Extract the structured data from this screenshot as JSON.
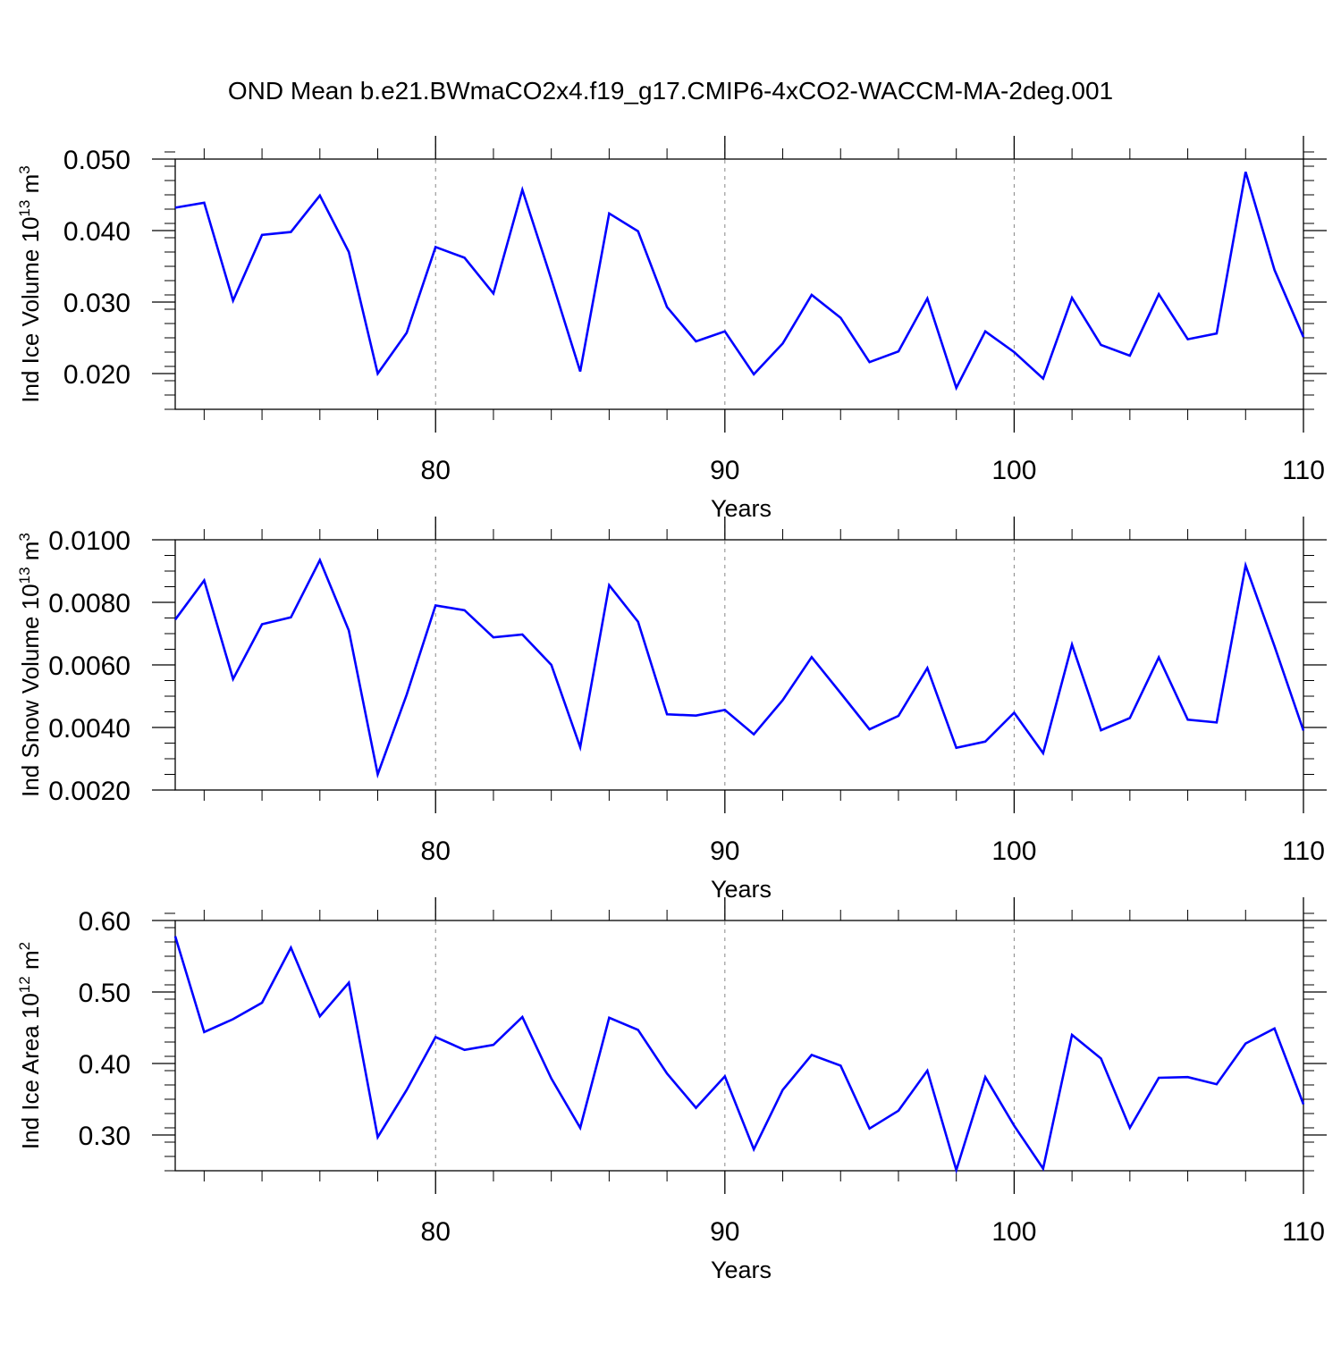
{
  "title": "OND Mean b.e21.BWmaCO2x4.f19_g17.CMIP6-4xCO2-WACCM-MA-2deg.001",
  "line_color": "#0000ff",
  "chart_data": [
    {
      "type": "line",
      "xlabel": "Years",
      "ylabel_main": "Ind Ice Volume 10",
      "ylabel_sup1": "13",
      "ylabel_unit": " m",
      "ylabel_sup2": "3",
      "xlim": [
        71,
        110
      ],
      "ylim": [
        0.015,
        0.05
      ],
      "x_ticks": [
        80,
        90,
        100,
        110
      ],
      "x_tick_labels": [
        "80",
        "90",
        "100",
        "110"
      ],
      "y_ticks": [
        0.02,
        0.03,
        0.04,
        0.05
      ],
      "y_tick_labels": [
        "0.020",
        "0.030",
        "0.040",
        "0.050"
      ],
      "y_minor_step": 0.002,
      "grid_x": [
        80,
        90,
        100
      ],
      "x": [
        71,
        72,
        73,
        74,
        75,
        76,
        77,
        78,
        79,
        80,
        81,
        82,
        83,
        84,
        85,
        86,
        87,
        88,
        89,
        90,
        91,
        92,
        93,
        94,
        95,
        96,
        97,
        98,
        99,
        100,
        101,
        102,
        103,
        104,
        105,
        106,
        107,
        108,
        109,
        110
      ],
      "values": [
        0.0432,
        0.0439,
        0.0302,
        0.0394,
        0.0398,
        0.0449,
        0.037,
        0.02,
        0.0257,
        0.0377,
        0.0362,
        0.0312,
        0.0457,
        0.0332,
        0.0203,
        0.0424,
        0.0399,
        0.0293,
        0.0245,
        0.0259,
        0.0199,
        0.0242,
        0.031,
        0.0278,
        0.0216,
        0.0231,
        0.0305,
        0.018,
        0.0259,
        0.023,
        0.0193,
        0.0306,
        0.024,
        0.0225,
        0.0311,
        0.0248,
        0.0256,
        0.0482,
        0.0345,
        0.0251
      ]
    },
    {
      "type": "line",
      "xlabel": "Years",
      "ylabel_main": "Ind Snow Volume 10",
      "ylabel_sup1": "13",
      "ylabel_unit": " m",
      "ylabel_sup2": "3",
      "xlim": [
        71,
        110
      ],
      "ylim": [
        0.002,
        0.01
      ],
      "x_ticks": [
        80,
        90,
        100,
        110
      ],
      "x_tick_labels": [
        "80",
        "90",
        "100",
        "110"
      ],
      "y_ticks": [
        0.002,
        0.004,
        0.006,
        0.008,
        0.01
      ],
      "y_tick_labels": [
        "0.0020",
        "0.0040",
        "0.0060",
        "0.0080",
        "0.0100"
      ],
      "y_minor_step": 0.0005,
      "grid_x": [
        80,
        90,
        100
      ],
      "x": [
        71,
        72,
        73,
        74,
        75,
        76,
        77,
        78,
        79,
        80,
        81,
        82,
        83,
        84,
        85,
        86,
        87,
        88,
        89,
        90,
        91,
        92,
        93,
        94,
        95,
        96,
        97,
        98,
        99,
        100,
        101,
        102,
        103,
        104,
        105,
        106,
        107,
        108,
        109,
        110
      ],
      "values": [
        0.00745,
        0.0087,
        0.00555,
        0.0073,
        0.00752,
        0.00935,
        0.0071,
        0.0025,
        0.00505,
        0.0079,
        0.00775,
        0.00688,
        0.00697,
        0.006,
        0.00337,
        0.00855,
        0.00738,
        0.00442,
        0.00438,
        0.00456,
        0.00378,
        0.00487,
        0.00625,
        0.0051,
        0.00394,
        0.00437,
        0.0059,
        0.00335,
        0.00355,
        0.00447,
        0.00318,
        0.00665,
        0.00391,
        0.0043,
        0.00624,
        0.00425,
        0.00416,
        0.00918,
        0.0066,
        0.0039
      ]
    },
    {
      "type": "line",
      "xlabel": "Years",
      "ylabel_main": "Ind Ice Area 10",
      "ylabel_sup1": "12",
      "ylabel_unit": " m",
      "ylabel_sup2": "2",
      "xlim": [
        71,
        110
      ],
      "ylim": [
        0.25,
        0.6
      ],
      "x_ticks": [
        80,
        90,
        100,
        110
      ],
      "x_tick_labels": [
        "80",
        "90",
        "100",
        "110"
      ],
      "y_ticks": [
        0.3,
        0.4,
        0.5,
        0.6
      ],
      "y_tick_labels": [
        "0.30",
        "0.40",
        "0.50",
        "0.60"
      ],
      "y_minor_step": 0.02,
      "grid_x": [
        80,
        90,
        100
      ],
      "x": [
        71,
        72,
        73,
        74,
        75,
        76,
        77,
        78,
        79,
        80,
        81,
        82,
        83,
        84,
        85,
        86,
        87,
        88,
        89,
        90,
        91,
        92,
        93,
        94,
        95,
        96,
        97,
        98,
        99,
        100,
        101,
        102,
        103,
        104,
        105,
        106,
        107,
        108,
        109,
        110
      ],
      "values": [
        0.578,
        0.444,
        0.462,
        0.485,
        0.562,
        0.466,
        0.513,
        0.297,
        0.363,
        0.437,
        0.419,
        0.426,
        0.465,
        0.379,
        0.31,
        0.464,
        0.447,
        0.386,
        0.338,
        0.382,
        0.28,
        0.363,
        0.412,
        0.397,
        0.309,
        0.334,
        0.39,
        0.251,
        0.381,
        0.313,
        0.253,
        0.44,
        0.407,
        0.31,
        0.38,
        0.381,
        0.371,
        0.428,
        0.449,
        0.343
      ]
    }
  ]
}
